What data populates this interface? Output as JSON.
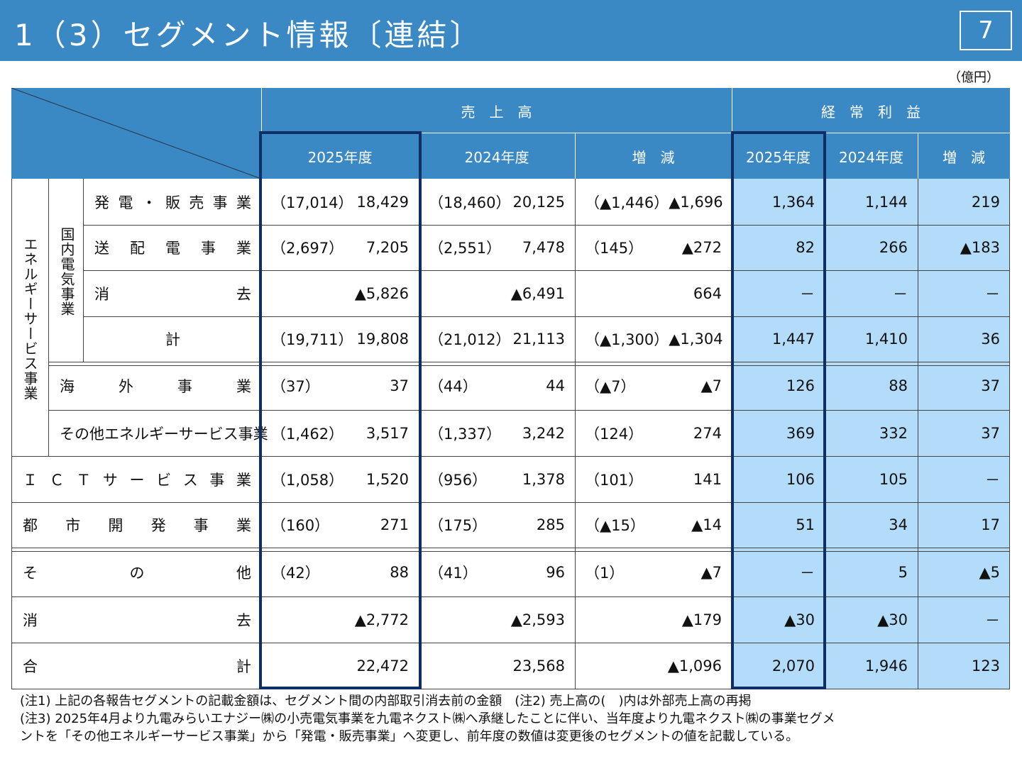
{
  "header": {
    "title": "1（3）セグメント情報〔連結〕",
    "page": "7"
  },
  "unit": "（億円）",
  "columns": {
    "sales": "売　上　高",
    "profit": "経　常　利　益",
    "fy2025": "2025年度",
    "fy2024": "2024年度",
    "change": "増　減"
  },
  "groups": {
    "energy": "エネルギーサービス事業",
    "domestic": "国内電気事業"
  },
  "rows": [
    {
      "label": [
        "発",
        "電",
        "・",
        "販",
        "売",
        "事",
        "業"
      ],
      "s25i": "（17,014）",
      "s25": "18,429",
      "s24i": "（18,460）",
      "s24": "20,125",
      "sdi": "（▲1,446）",
      "sd": "▲1,696",
      "p25": "1,364",
      "p24": "1,144",
      "pd": "219"
    },
    {
      "label": [
        "送",
        "配",
        "電",
        "事",
        "業"
      ],
      "s25i": "（2,697）",
      "s25": "7,205",
      "s24i": "（2,551）",
      "s24": "7,478",
      "sdi": "（145）",
      "sd": "▲272",
      "p25": "82",
      "p24": "266",
      "pd": "▲183"
    },
    {
      "label": [
        "消",
        "去"
      ],
      "s25i": "",
      "s25": "▲5,826",
      "s24i": "",
      "s24": "▲6,491",
      "sdi": "",
      "sd": "664",
      "p25": "－",
      "p24": "－",
      "pd": "－"
    },
    {
      "label": [
        "計"
      ],
      "s25i": "（19,711）",
      "s25": "19,808",
      "s24i": "（21,012）",
      "s24": "21,113",
      "sdi": "（▲1,300）",
      "sd": "▲1,304",
      "p25": "1,447",
      "p24": "1,410",
      "pd": "36"
    },
    {
      "label": [
        "海",
        "外",
        "事",
        "業"
      ],
      "s25i": "（37）",
      "s25": "37",
      "s24i": "（44）",
      "s24": "44",
      "sdi": "（▲7）",
      "sd": "▲7",
      "p25": "126",
      "p24": "88",
      "pd": "37"
    },
    {
      "label": [
        "その他エネルギーサービス事業"
      ],
      "s25i": "（1,462）",
      "s25": "3,517",
      "s24i": "（1,337）",
      "s24": "3,242",
      "sdi": "（124）",
      "sd": "274",
      "p25": "369",
      "p24": "332",
      "pd": "37"
    },
    {
      "label": [
        "Ｉ",
        "Ｃ",
        "Ｔ",
        "サ",
        "ー",
        "ビ",
        "ス",
        "事",
        "業"
      ],
      "s25i": "（1,058）",
      "s25": "1,520",
      "s24i": "（956）",
      "s24": "1,378",
      "sdi": "（101）",
      "sd": "141",
      "p25": "106",
      "p24": "105",
      "pd": "－"
    },
    {
      "label": [
        "都",
        "市",
        "開",
        "発",
        "事",
        "業"
      ],
      "s25i": "（160）",
      "s25": "271",
      "s24i": "（175）",
      "s24": "285",
      "sdi": "（▲15）",
      "sd": "▲14",
      "p25": "51",
      "p24": "34",
      "pd": "17"
    },
    {
      "label": [
        "そ",
        "の",
        "他"
      ],
      "s25i": "（42）",
      "s25": "88",
      "s24i": "（41）",
      "s24": "96",
      "sdi": "（1）",
      "sd": "▲7",
      "p25": "－",
      "p24": "5",
      "pd": "▲5"
    },
    {
      "label": [
        "消",
        "去"
      ],
      "s25i": "",
      "s25": "▲2,772",
      "s24i": "",
      "s24": "▲2,593",
      "sdi": "",
      "sd": "▲179",
      "p25": "▲30",
      "p24": "▲30",
      "pd": "－"
    },
    {
      "label": [
        "合",
        "計"
      ],
      "s25i": "",
      "s25": "22,472",
      "s24i": "",
      "s24": "23,568",
      "sdi": "",
      "sd": "▲1,096",
      "p25": "2,070",
      "p24": "1,946",
      "pd": "123"
    }
  ],
  "notes": [
    "(注1) 上記の各報告セグメントの記載金額は、セグメント間の内部取引消去前の金額　(注2) 売上高の(　)内は外部売上高の再掲",
    "(注3) 2025年4月より九電みらいエナジー㈱の小売電気事業を九電ネクスト㈱へ承継したことに伴い、当年度より九電ネクスト㈱の事業セグメ",
    "ントを「その他エネルギーサービス事業」から「発電・販売事業」へ変更し、前年度の数値は変更後のセグメントの値を記載している。"
  ],
  "colors": {
    "header": "#3a89c4",
    "profit_bg": "#b3dcfb",
    "highlight": "#0f2e66"
  }
}
